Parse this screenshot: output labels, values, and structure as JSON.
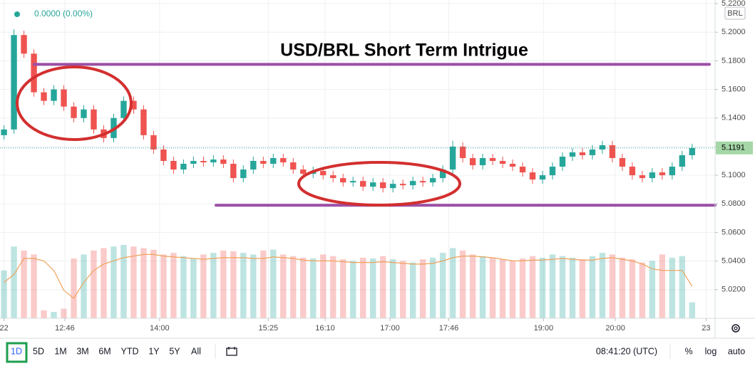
{
  "chart_data": {
    "type": "candlestick",
    "title": "USD/BRL Short Term Intrigue",
    "header": "0.0000 (0.00%)",
    "currency": "BRL",
    "last_price": 5.1191,
    "up_color": "#26a69a",
    "down_color": "#ef5350",
    "grid": true,
    "ylim": [
      5.0,
      5.2225
    ],
    "yticks": [
      {
        "value": 5.02,
        "label": "5.0200"
      },
      {
        "value": 5.04,
        "label": "5.0400"
      },
      {
        "value": 5.06,
        "label": "5.0600"
      },
      {
        "value": 5.08,
        "label": "5.0800"
      },
      {
        "value": 5.1,
        "label": "5.1000"
      },
      {
        "value": 5.12,
        "label": "5.1200"
      },
      {
        "value": 5.14,
        "label": "5.1400"
      },
      {
        "value": 5.16,
        "label": "5.1600"
      },
      {
        "value": 5.18,
        "label": "5.1800"
      },
      {
        "value": 5.2,
        "label": "5.2000"
      },
      {
        "value": 5.22,
        "label": "5.2200"
      }
    ],
    "xlim": [
      -0.4,
      71.3
    ],
    "xticks": [
      {
        "value": 0,
        "label": "22"
      },
      {
        "value": 6.1,
        "label": "12:46"
      },
      {
        "value": 15.6,
        "label": "14:00"
      },
      {
        "value": 26.5,
        "label": "15:25"
      },
      {
        "value": 32.2,
        "label": "16:10"
      },
      {
        "value": 38.7,
        "label": "17:00"
      },
      {
        "value": 44.6,
        "label": "17:46"
      },
      {
        "value": 54.1,
        "label": "19:00"
      },
      {
        "value": 61.3,
        "label": "20:00"
      },
      {
        "value": 70.4,
        "label": "23"
      }
    ],
    "open": [
      5.128,
      5.132,
      5.198,
      5.185,
      5.158,
      5.152,
      5.16,
      5.148,
      5.14,
      5.146,
      5.132,
      5.126,
      5.14,
      5.152,
      5.146,
      5.128,
      5.118,
      5.11,
      5.104,
      5.108,
      5.11,
      5.109,
      5.111,
      5.108,
      5.098,
      5.104,
      5.11,
      5.108,
      5.112,
      5.109,
      5.104,
      5.101,
      5.103,
      5.1,
      5.098,
      5.095,
      5.096,
      5.092,
      5.095,
      5.091,
      5.094,
      5.093,
      5.096,
      5.095,
      5.098,
      5.104,
      5.12,
      5.112,
      5.107,
      5.112,
      5.11,
      5.108,
      5.106,
      5.102,
      5.097,
      5.1,
      5.106,
      5.113,
      5.116,
      5.114,
      5.118,
      5.121,
      5.112,
      5.106,
      5.1,
      5.098,
      5.102,
      5.1,
      5.106,
      5.114
    ],
    "high": [
      5.135,
      5.202,
      5.201,
      5.188,
      5.161,
      5.163,
      5.163,
      5.151,
      5.149,
      5.149,
      5.135,
      5.143,
      5.155,
      5.155,
      5.149,
      5.131,
      5.121,
      5.113,
      5.111,
      5.113,
      5.113,
      5.114,
      5.114,
      5.111,
      5.107,
      5.113,
      5.113,
      5.115,
      5.115,
      5.112,
      5.107,
      5.106,
      5.106,
      5.103,
      5.101,
      5.099,
      5.099,
      5.098,
      5.098,
      5.097,
      5.097,
      5.099,
      5.099,
      5.101,
      5.107,
      5.124,
      5.123,
      5.115,
      5.115,
      5.115,
      5.113,
      5.111,
      5.109,
      5.105,
      5.103,
      5.109,
      5.116,
      5.119,
      5.119,
      5.121,
      5.124,
      5.124,
      5.115,
      5.109,
      5.103,
      5.105,
      5.105,
      5.109,
      5.117,
      5.122
    ],
    "low": [
      5.125,
      5.129,
      5.182,
      5.155,
      5.149,
      5.149,
      5.145,
      5.137,
      5.137,
      5.129,
      5.123,
      5.123,
      5.137,
      5.143,
      5.125,
      5.115,
      5.107,
      5.101,
      5.101,
      5.105,
      5.106,
      5.106,
      5.105,
      5.095,
      5.095,
      5.101,
      5.105,
      5.105,
      5.106,
      5.101,
      5.098,
      5.098,
      5.097,
      5.095,
      5.092,
      5.092,
      5.089,
      5.089,
      5.088,
      5.088,
      5.09,
      5.09,
      5.092,
      5.092,
      5.095,
      5.101,
      5.109,
      5.104,
      5.104,
      5.107,
      5.105,
      5.103,
      5.099,
      5.094,
      5.094,
      5.097,
      5.103,
      5.11,
      5.111,
      5.111,
      5.115,
      5.109,
      5.103,
      5.097,
      5.095,
      5.095,
      5.097,
      5.097,
      5.103,
      5.111
    ],
    "close": [
      5.132,
      5.198,
      5.185,
      5.158,
      5.152,
      5.16,
      5.148,
      5.14,
      5.146,
      5.132,
      5.126,
      5.14,
      5.152,
      5.146,
      5.128,
      5.118,
      5.11,
      5.104,
      5.108,
      5.11,
      5.109,
      5.111,
      5.108,
      5.098,
      5.104,
      5.11,
      5.108,
      5.112,
      5.109,
      5.104,
      5.101,
      5.103,
      5.1,
      5.098,
      5.095,
      5.096,
      5.092,
      5.095,
      5.091,
      5.094,
      5.093,
      5.096,
      5.095,
      5.098,
      5.104,
      5.12,
      5.112,
      5.107,
      5.112,
      5.11,
      5.108,
      5.106,
      5.102,
      5.097,
      5.1,
      5.106,
      5.113,
      5.116,
      5.114,
      5.118,
      5.121,
      5.112,
      5.106,
      5.1,
      5.098,
      5.102,
      5.1,
      5.106,
      5.114,
      5.119
    ],
    "volume_ylim": [
      0,
      100
    ],
    "volume": [
      60,
      90,
      85,
      80,
      10,
      8,
      12,
      75,
      80,
      85,
      88,
      90,
      92,
      90,
      88,
      86,
      80,
      82,
      78,
      75,
      80,
      82,
      85,
      84,
      82,
      80,
      85,
      86,
      80,
      78,
      76,
      75,
      80,
      78,
      74,
      72,
      76,
      75,
      78,
      74,
      72,
      70,
      74,
      76,
      82,
      88,
      85,
      80,
      78,
      76,
      74,
      72,
      75,
      78,
      76,
      80,
      78,
      76,
      74,
      78,
      82,
      80,
      76,
      74,
      70,
      72,
      80,
      76,
      78,
      20
    ],
    "volume_ma_color": "#f0a25b",
    "volume_ma": [
      45,
      55,
      75,
      75,
      72,
      60,
      35,
      25,
      45,
      60,
      68,
      72,
      76,
      78,
      80,
      80,
      78,
      77,
      76,
      75,
      74,
      75,
      76,
      76,
      76,
      75,
      75,
      77,
      76,
      75,
      73,
      72,
      72,
      72,
      71,
      70,
      70,
      70,
      71,
      70,
      69,
      68,
      68,
      69,
      72,
      76,
      78,
      78,
      77,
      76,
      74,
      72,
      72,
      73,
      73,
      74,
      75,
      74,
      73,
      73,
      75,
      76,
      74,
      72,
      68,
      62,
      60,
      60,
      60,
      40
    ],
    "hlines": [
      {
        "value": 5.1775,
        "color": "#9c4fa6"
      },
      {
        "value": 5.079,
        "color": "#9c4fa6"
      }
    ]
  },
  "toolbar": {
    "ranges": [
      "1D",
      "5D",
      "1M",
      "3M",
      "6M",
      "YTD",
      "1Y",
      "5Y",
      "All"
    ],
    "time": "08:41:20 (UTC)",
    "options": [
      "%",
      "log",
      "auto"
    ]
  }
}
